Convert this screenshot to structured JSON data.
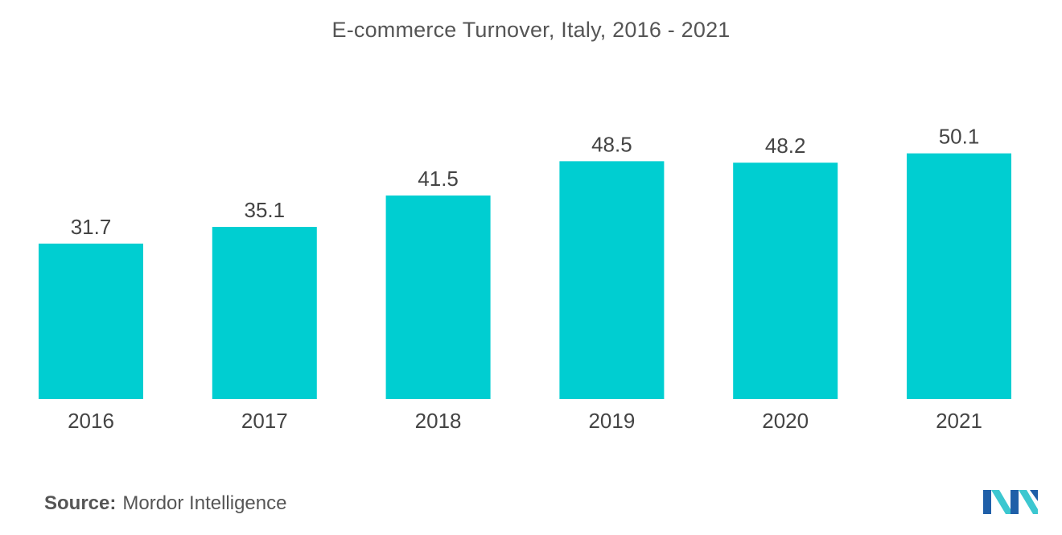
{
  "chart_data": {
    "type": "bar",
    "title": "E-commerce Turnover, Italy, 2016 - 2021",
    "categories": [
      "2016",
      "2017",
      "2018",
      "2019",
      "2020",
      "2021"
    ],
    "values": [
      31.7,
      35.1,
      41.5,
      48.5,
      48.2,
      50.1
    ],
    "value_labels": [
      "31.7",
      "35.1",
      "41.5",
      "48.5",
      "48.2",
      "50.1"
    ],
    "xlabel": "",
    "ylabel": "",
    "ylim": [
      0,
      63
    ],
    "grid": false,
    "legend": "none",
    "bar_color": "#00ced1"
  },
  "source": {
    "label": "Source:",
    "text": "Mordor Intelligence"
  },
  "logo": {
    "icon": "mordor-intelligence-logo",
    "colors": [
      "#1f5fa8",
      "#3cc7d0"
    ]
  }
}
